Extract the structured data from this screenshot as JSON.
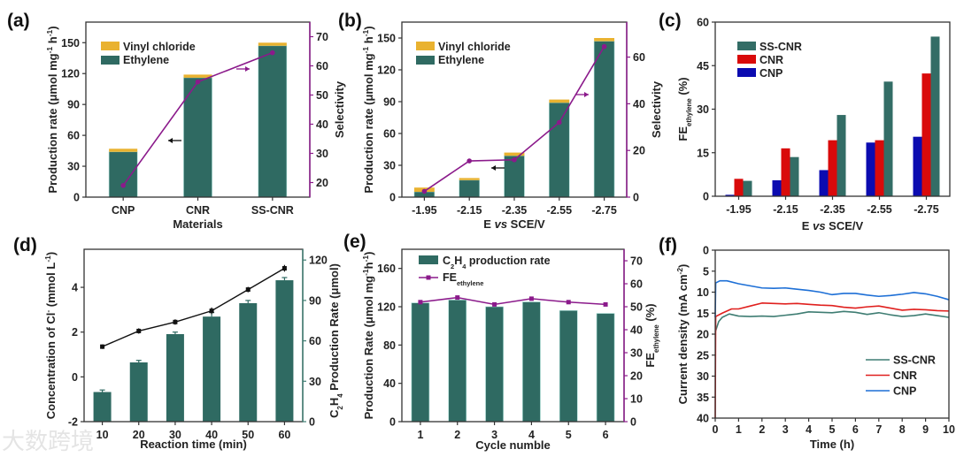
{
  "watermark": "大数跨境",
  "colors": {
    "ethylene": "#2f6a62",
    "vinyl_chloride": "#e9b230",
    "selectivity": "#8b1a8b",
    "ss_cnr": "#336d66",
    "cnr": "#d90a0a",
    "cnp": "#0b0bb0",
    "f_ss_cnr": "#3f7d73",
    "f_cnr": "#e0201e",
    "f_cnp": "#1d6fd6"
  },
  "chart_data": [
    {
      "panel": "(a)",
      "type": "bar",
      "stacked": true,
      "categories": [
        "CNP",
        "CNR",
        "SS-CNR"
      ],
      "series": [
        {
          "name": "Ethylene",
          "values": [
            44,
            116,
            147
          ]
        },
        {
          "name": "Vinyl chloride",
          "values": [
            3,
            3,
            3
          ]
        }
      ],
      "line_series": {
        "name": "Selectivity",
        "axis": "right",
        "values": [
          19,
          54.5,
          64.5
        ]
      },
      "xlabel": "Materials",
      "ylabel": [
        {
          "t": "Production rate (μmol mg"
        },
        {
          "t": "-1",
          "sup": true
        },
        {
          "t": " h"
        },
        {
          "t": "-1",
          "sup": true
        },
        {
          "t": ")"
        }
      ],
      "y2label": [
        {
          "t": "Selectivity"
        }
      ],
      "ylim": [
        0,
        170
      ],
      "yticks": [
        0,
        30,
        60,
        90,
        120,
        150
      ],
      "y2lim": [
        15,
        75
      ],
      "y2ticks": [
        20,
        30,
        40,
        50,
        60,
        70
      ],
      "legend": "top-left"
    },
    {
      "panel": "(b)",
      "type": "bar",
      "stacked": true,
      "categories": [
        "-1.95",
        "-2.15",
        "-2.35",
        "-2.55",
        "-2.75"
      ],
      "series": [
        {
          "name": "Ethylene",
          "values": [
            5,
            16,
            39,
            89,
            147
          ]
        },
        {
          "name": "Vinyl chloride",
          "values": [
            4,
            2,
            3,
            3,
            3
          ]
        }
      ],
      "line_series": {
        "name": "Selectivity",
        "axis": "right",
        "values": [
          2.5,
          15.5,
          16,
          32,
          64.5
        ]
      },
      "xlabel": [
        {
          "t": "E "
        },
        {
          "t": "vs",
          "it": true
        },
        {
          "t": " SCE/V"
        }
      ],
      "ylabel": [
        {
          "t": "Production rate (μmol mg"
        },
        {
          "t": "-1",
          "sup": true
        },
        {
          "t": " h"
        },
        {
          "t": "-1",
          "sup": true
        },
        {
          "t": ")"
        }
      ],
      "y2label": [
        {
          "t": "Selectivity"
        }
      ],
      "ylim": [
        0,
        165
      ],
      "yticks": [
        0,
        30,
        60,
        90,
        120,
        150
      ],
      "y2lim": [
        0,
        75
      ],
      "y2ticks": [
        0,
        20,
        40,
        60
      ],
      "legend": "top-left"
    },
    {
      "panel": "(c)",
      "type": "bar",
      "grouped": true,
      "categories": [
        "-1.95",
        "-2.15",
        "-2.35",
        "-2.55",
        "-2.75"
      ],
      "series": [
        {
          "name": "CNP",
          "values": [
            0.5,
            5.5,
            9,
            18.5,
            20.5
          ]
        },
        {
          "name": "CNR",
          "values": [
            6,
            16.5,
            19.3,
            19.3,
            42.3
          ]
        },
        {
          "name": "SS-CNR",
          "values": [
            5.3,
            13.5,
            28,
            39.5,
            55
          ]
        }
      ],
      "legend_order": [
        "SS-CNR",
        "CNR",
        "CNP"
      ],
      "xlabel": [
        {
          "t": "E "
        },
        {
          "t": "vs",
          "it": true
        },
        {
          "t": " SCE/V"
        }
      ],
      "ylabel": [
        {
          "t": "FE"
        },
        {
          "t": "ethylene",
          "sub": true
        },
        {
          "t": " (%)"
        }
      ],
      "ylim": [
        0,
        60
      ],
      "yticks": [
        0,
        15,
        30,
        45,
        60
      ],
      "legend": "top-left"
    },
    {
      "panel": "(d)",
      "type": "bar",
      "categories": [
        "10",
        "20",
        "30",
        "40",
        "50",
        "60"
      ],
      "bar_series": {
        "name": "C2H4 Production Rate",
        "axis": "right",
        "values": [
          22,
          44,
          65,
          78,
          88,
          105
        ],
        "errors": [
          1.5,
          1.5,
          1.5,
          3,
          2,
          2
        ]
      },
      "line_series": {
        "name": "Concentration of Cl-",
        "axis": "left",
        "values": [
          1.35,
          2.05,
          2.45,
          2.95,
          3.9,
          4.85
        ],
        "errors": [
          0.1,
          0.12,
          0.12,
          0.15,
          0.12,
          0.15
        ]
      },
      "xlabel": "Reaction time (min)",
      "ylabel": [
        {
          "t": "Concentration of  Cl"
        },
        {
          "t": "-",
          "sup": true
        },
        {
          "t": " (mmol L"
        },
        {
          "t": "-1",
          "sup": true
        },
        {
          "t": ")"
        }
      ],
      "y2label": [
        {
          "t": "C"
        },
        {
          "t": "2",
          "sub": true
        },
        {
          "t": "H"
        },
        {
          "t": "4",
          "sub": true
        },
        {
          "t": " Production Rate (μmol)"
        }
      ],
      "ylim": [
        -2,
        5.7
      ],
      "yticks": [
        -2,
        0,
        2,
        4
      ],
      "y2lim": [
        0,
        128
      ],
      "y2ticks": [
        0,
        30,
        60,
        90,
        120
      ]
    },
    {
      "panel": "(e)",
      "type": "bar",
      "categories": [
        "1",
        "2",
        "3",
        "4",
        "5",
        "6"
      ],
      "bar_series": {
        "name": "C2H4 production rate",
        "axis": "left",
        "values": [
          124,
          127,
          120,
          125,
          116,
          113
        ]
      },
      "line_series": {
        "name": "FE ethylene",
        "axis": "right",
        "values": [
          52,
          54,
          51,
          53.5,
          52,
          51
        ]
      },
      "legend_labels": {
        "bar": [
          {
            "t": "C"
          },
          {
            "t": "2",
            "sub": true
          },
          {
            "t": "H"
          },
          {
            "t": "4",
            "sub": true
          },
          {
            "t": " production rate"
          }
        ],
        "line": [
          {
            "t": "FE"
          },
          {
            "t": "ethylene",
            "sub": true
          }
        ]
      },
      "xlabel": "Cycle numble",
      "ylabel": [
        {
          "t": "Production Rate (μmol mg"
        },
        {
          "t": "-1",
          "sup": true
        },
        {
          "t": "h"
        },
        {
          "t": "-1",
          "sup": true
        },
        {
          "t": ")"
        }
      ],
      "y2label": [
        {
          "t": "FE"
        },
        {
          "t": "ethylene",
          "sub": true
        },
        {
          "t": " (%)"
        }
      ],
      "ylim": [
        0,
        180
      ],
      "yticks": [
        0,
        40,
        80,
        120,
        160
      ],
      "y2lim": [
        0,
        75
      ],
      "y2ticks": [
        0,
        10,
        20,
        30,
        40,
        50,
        60,
        70
      ],
      "legend": "top-left"
    },
    {
      "panel": "(f)",
      "type": "line",
      "x_ticks": [
        0,
        1,
        2,
        3,
        4,
        5,
        6,
        7,
        8,
        9,
        10
      ],
      "xlim": [
        0,
        10
      ],
      "ylim": [
        40,
        0
      ],
      "yticks": [
        0,
        5,
        10,
        15,
        20,
        25,
        30,
        35,
        40
      ],
      "xlabel": "Time (h)",
      "ylabel": [
        {
          "t": "Current density (mA cm"
        },
        {
          "t": "-2",
          "sup": true
        },
        {
          "t": ")"
        }
      ],
      "series": [
        {
          "name": "SS-CNR",
          "x": [
            0,
            0.15,
            0.3,
            0.6,
            1,
            1.5,
            2,
            2.5,
            3,
            3.5,
            4,
            4.5,
            5,
            5.5,
            6,
            6.5,
            7,
            7.5,
            8,
            8.5,
            9,
            9.5,
            10
          ],
          "y": [
            19.5,
            17,
            16,
            15.2,
            15.7,
            15.8,
            15.7,
            15.8,
            15.5,
            15.2,
            14.7,
            14.8,
            14.9,
            14.6,
            14.8,
            15.3,
            14.9,
            15.4,
            15.8,
            15.6,
            15.2,
            15.6,
            16
          ]
        },
        {
          "name": "CNR",
          "x": [
            0,
            0.02,
            0.3,
            0.7,
            1,
            1.5,
            2,
            2.5,
            3,
            3.5,
            4,
            4.5,
            5,
            5.5,
            6,
            6.5,
            7,
            7.5,
            8,
            8.5,
            9,
            9.5,
            10
          ],
          "y": [
            40,
            15.8,
            15,
            14,
            14,
            13.3,
            12.6,
            12.7,
            12.8,
            12.7,
            12.9,
            13.1,
            13.2,
            13.6,
            13.8,
            13.5,
            13.3,
            13.8,
            14.3,
            14.1,
            14.2,
            14.4,
            14.5
          ]
        },
        {
          "name": "CNP",
          "x": [
            0,
            0.02,
            0.2,
            0.5,
            1,
            1.5,
            2,
            2.5,
            3,
            3.5,
            4,
            4.5,
            5,
            5.5,
            6,
            6.5,
            7,
            7.5,
            8,
            8.5,
            9,
            9.5,
            10
          ],
          "y": [
            16,
            7.8,
            7.3,
            7.3,
            8,
            8.5,
            9,
            9.1,
            9,
            9.3,
            9.6,
            10,
            10.6,
            10.3,
            10.3,
            10.7,
            11,
            10.8,
            10.5,
            10.1,
            10.4,
            11,
            11.8
          ]
        }
      ],
      "legend": "bottom-right"
    }
  ]
}
